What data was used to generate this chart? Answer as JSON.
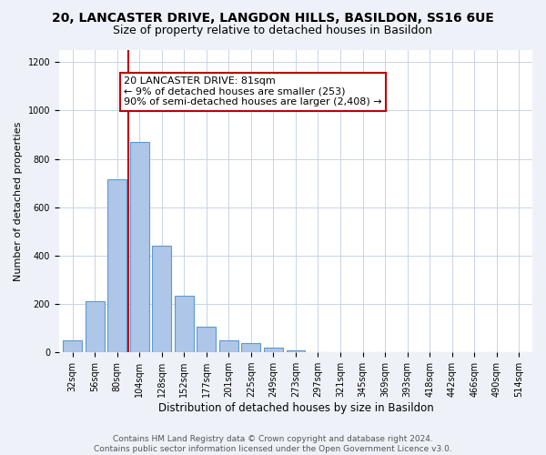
{
  "title": "20, LANCASTER DRIVE, LANGDON HILLS, BASILDON, SS16 6UE",
  "subtitle": "Size of property relative to detached houses in Basildon",
  "xlabel": "Distribution of detached houses by size in Basildon",
  "ylabel": "Number of detached properties",
  "bar_labels": [
    "32sqm",
    "56sqm",
    "80sqm",
    "104sqm",
    "128sqm",
    "152sqm",
    "177sqm",
    "201sqm",
    "225sqm",
    "249sqm",
    "273sqm",
    "297sqm",
    "321sqm",
    "345sqm",
    "369sqm",
    "393sqm",
    "418sqm",
    "442sqm",
    "466sqm",
    "490sqm",
    "514sqm"
  ],
  "bar_values": [
    50,
    210,
    715,
    870,
    440,
    235,
    105,
    50,
    40,
    20,
    10,
    0,
    0,
    0,
    0,
    0,
    0,
    0,
    0,
    0,
    0
  ],
  "bar_color": "#aec6e8",
  "bar_edge_color": "#5b9bd5",
  "vline_color": "#c00000",
  "vline_x_index": 2,
  "annotation_line1": "20 LANCASTER DRIVE: 81sqm",
  "annotation_line2": "← 9% of detached houses are smaller (253)",
  "annotation_line3": "90% of semi-detached houses are larger (2,408) →",
  "annotation_box_color": "#ffffff",
  "annotation_box_edge": "#c00000",
  "ylim": [
    0,
    1250
  ],
  "yticks": [
    0,
    200,
    400,
    600,
    800,
    1000,
    1200
  ],
  "footer_line1": "Contains HM Land Registry data © Crown copyright and database right 2024.",
  "footer_line2": "Contains public sector information licensed under the Open Government Licence v3.0.",
  "bg_color": "#eef2f8",
  "plot_bg_color": "#ffffff",
  "grid_color": "#c8d4e8",
  "title_fontsize": 10,
  "subtitle_fontsize": 9,
  "xlabel_fontsize": 8.5,
  "ylabel_fontsize": 8,
  "tick_fontsize": 7,
  "annotation_fontsize": 8,
  "footer_fontsize": 6.5
}
